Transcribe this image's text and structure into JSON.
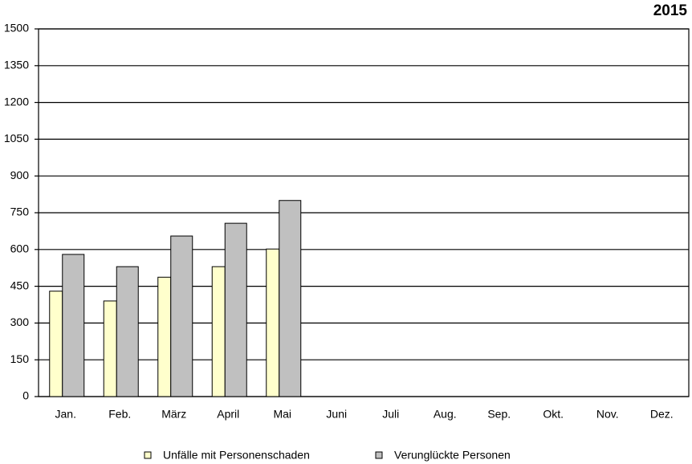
{
  "chart_data": {
    "type": "bar",
    "title": "2015",
    "categories": [
      "Jan.",
      "Feb.",
      "März",
      "April",
      "Mai",
      "Juni",
      "Juli",
      "Aug.",
      "Sep.",
      "Okt.",
      "Nov.",
      "Dez."
    ],
    "series": [
      {
        "name": "Unfälle mit Personenschaden",
        "color": "#ffffcc",
        "values": [
          430,
          390,
          487,
          530,
          602,
          null,
          null,
          null,
          null,
          null,
          null,
          null
        ]
      },
      {
        "name": "Verunglückte Personen",
        "color": "#c0c0c0",
        "values": [
          580,
          530,
          655,
          707,
          800,
          null,
          null,
          null,
          null,
          null,
          null,
          null
        ]
      }
    ],
    "ylim": [
      0,
      1500
    ],
    "yticks": [
      0,
      150,
      300,
      450,
      600,
      750,
      900,
      1050,
      1200,
      1350,
      1500
    ],
    "grid": true
  }
}
